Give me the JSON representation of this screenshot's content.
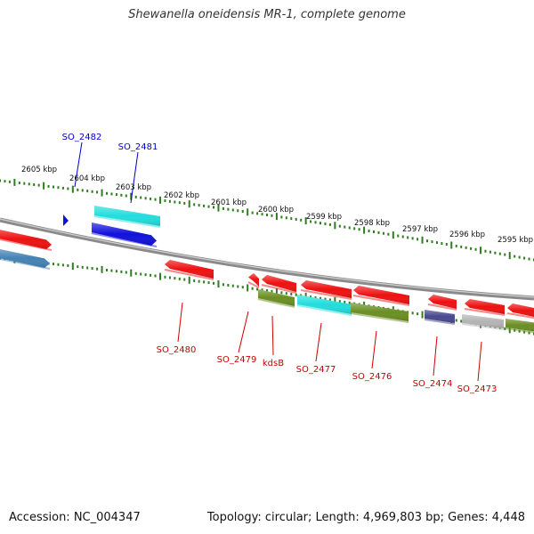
{
  "title": "Shewanella oneidensis MR-1, complete genome",
  "footer": {
    "accession": "Accession: NC_004347",
    "summary": "Topology: circular; Length: 4,969,803 bp; Genes: 4,448"
  },
  "colors": {
    "backbone": "#8a8a8a",
    "tick": "#2e7d1e",
    "label_top": "#0000cc",
    "label_bottom": "#cc0000",
    "red": "#ee1111",
    "cyan": "#22dddd",
    "blue": "#1111dd",
    "olive": "#6b8e23",
    "steel": "#4682b4",
    "navy": "#484890",
    "gray": "#b4b4b4"
  },
  "kbp_labels": [
    "2605 kbp",
    "2604 kbp",
    "2603 kbp",
    "2602 kbp",
    "2601 kbp",
    "2600 kbp",
    "2599 kbp",
    "2598 kbp",
    "2597 kbp",
    "2596 kbp",
    "2595 kbp"
  ],
  "gene_labels_top": [
    "SO_2482",
    "SO_2481"
  ],
  "gene_labels_bottom": [
    "SO_2480",
    "SO_2479",
    "kdsB",
    "SO_2477",
    "SO_2476",
    "SO_2474",
    "SO_2473"
  ]
}
